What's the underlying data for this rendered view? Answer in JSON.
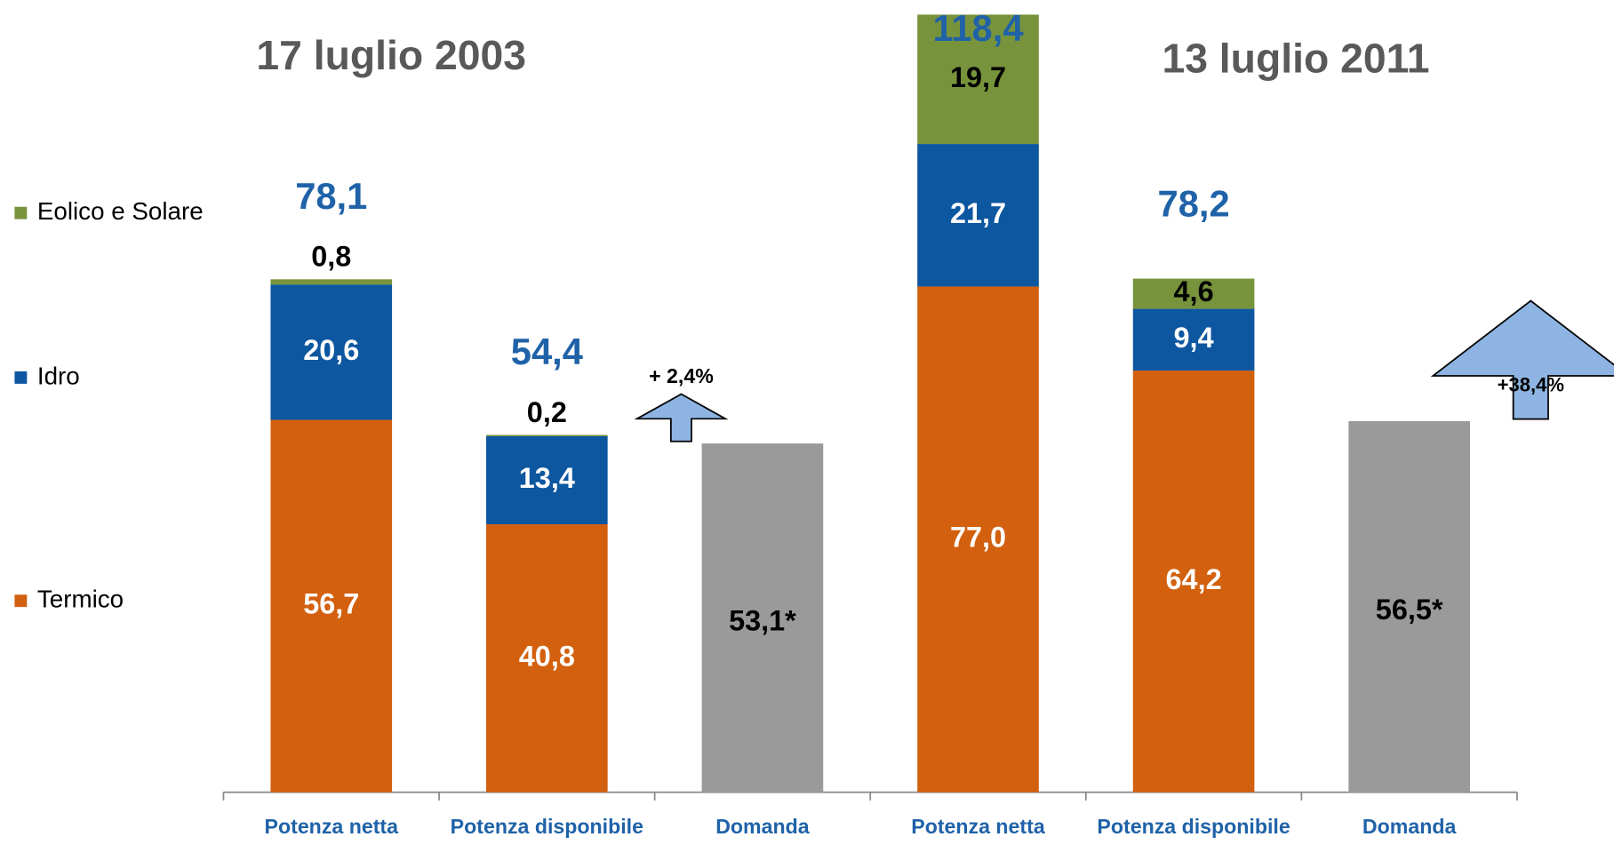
{
  "chart_data": {
    "type": "bar",
    "stacked": true,
    "titles": [
      "17 luglio 2003",
      "13 luglio 2011"
    ],
    "categories": [
      "Potenza netta",
      "Potenza  disponibile",
      "Domanda",
      "Potenza netta",
      "Potenza  disponibile",
      "Domanda"
    ],
    "series": [
      {
        "name": "Termico",
        "color": "#d2600e",
        "values": [
          56.7,
          40.8,
          null,
          77.0,
          64.2,
          null
        ],
        "value_labels": [
          "56,7",
          "40,8",
          null,
          "77,0",
          "64,2",
          null
        ]
      },
      {
        "name": "Idro",
        "color": "#0d56a0",
        "values": [
          20.6,
          13.4,
          null,
          21.7,
          9.4,
          null
        ],
        "value_labels": [
          "20,6",
          "13,4",
          null,
          "21,7",
          "9,4",
          null
        ]
      },
      {
        "name": "Eolico e Solare",
        "color": "#77933c",
        "values": [
          0.8,
          0.2,
          null,
          19.7,
          4.6,
          null
        ],
        "value_labels": [
          "0,8",
          "0,2",
          null,
          "19,7",
          "4,6",
          null
        ]
      }
    ],
    "demand": {
      "color": "#9a9a9a",
      "values": [
        null,
        null,
        53.1,
        null,
        null,
        56.5
      ],
      "value_labels": [
        null,
        null,
        "53,1*",
        null,
        null,
        "56,5*"
      ]
    },
    "totals": {
      "values": [
        78.1,
        54.4,
        null,
        118.4,
        78.2,
        null
      ],
      "value_labels": [
        "78,1",
        "54,4",
        null,
        "118,4",
        "78,2",
        null
      ]
    },
    "growth": {
      "color": "#8db4e2",
      "values": [
        null,
        null,
        2.4,
        null,
        null,
        38.4
      ],
      "value_labels": [
        null,
        null,
        "+ 2,4%",
        null,
        null,
        "+38,4%"
      ]
    },
    "ylim": [
      0,
      120
    ],
    "legend": "left"
  }
}
